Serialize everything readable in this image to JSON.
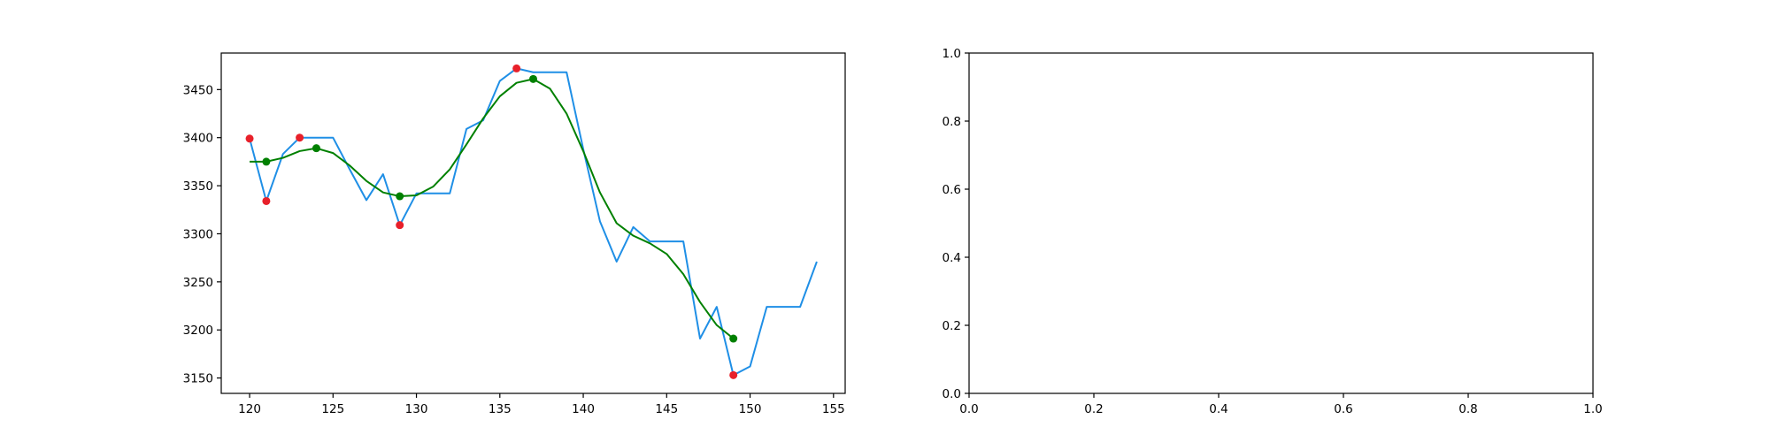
{
  "chart_data": [
    {
      "type": "line",
      "xlim": [
        118.3,
        155.7
      ],
      "ylim": [
        3134,
        3488
      ],
      "xticks": [
        120,
        125,
        130,
        135,
        140,
        145,
        150,
        155
      ],
      "yticks": [
        3150,
        3200,
        3250,
        3300,
        3350,
        3400,
        3450
      ],
      "xtick_labels": [
        "120",
        "125",
        "130",
        "135",
        "140",
        "145",
        "150",
        "155"
      ],
      "ytick_labels": [
        "3150",
        "3200",
        "3250",
        "3300",
        "3350",
        "3400",
        "3450"
      ],
      "grid": false,
      "series": [
        {
          "kind": "line",
          "color": "#1f8fe6",
          "x": [
            120,
            121,
            122,
            123,
            124,
            125,
            126,
            127,
            128,
            129,
            130,
            131,
            132,
            133,
            134,
            135,
            136,
            137,
            138,
            139,
            140,
            141,
            142,
            143,
            144,
            145,
            146,
            147,
            148,
            149,
            150,
            151,
            152,
            153,
            154
          ],
          "y": [
            3399,
            3334,
            3383,
            3400,
            3400,
            3400,
            3367,
            3335,
            3362,
            3309,
            3342,
            3342,
            3342,
            3409,
            3418,
            3459,
            3472,
            3468,
            3468,
            3468,
            3388,
            3313,
            3271,
            3307,
            3292,
            3292,
            3292,
            3191,
            3224,
            3153,
            3162,
            3224,
            3224,
            3224,
            3271
          ]
        },
        {
          "kind": "line",
          "color": "#008000",
          "x": [
            120,
            121,
            122,
            123,
            124,
            125,
            126,
            127,
            128,
            129,
            130,
            131,
            132,
            133,
            134,
            135,
            136,
            137,
            138,
            139,
            140,
            141,
            142,
            143,
            144,
            145,
            146,
            147,
            148,
            149
          ],
          "y": [
            3375,
            3375,
            3379,
            3386,
            3389,
            3384,
            3371,
            3355,
            3343,
            3339,
            3340,
            3349,
            3367,
            3393,
            3420,
            3443,
            3457,
            3461,
            3451,
            3425,
            3386,
            3343,
            3311,
            3298,
            3290,
            3279,
            3258,
            3229,
            3205,
            3191
          ]
        },
        {
          "kind": "scatter",
          "color": "#e8202a",
          "x": [
            120,
            121,
            123,
            129,
            136,
            149
          ],
          "y": [
            3399,
            3334,
            3400,
            3309,
            3472,
            3153
          ]
        },
        {
          "kind": "scatter",
          "color": "#008000",
          "x": [
            121,
            124,
            129,
            137,
            149
          ],
          "y": [
            3375,
            3389,
            3339,
            3461,
            3191
          ]
        }
      ]
    },
    {
      "type": "line",
      "xlim": [
        0.0,
        1.0
      ],
      "ylim": [
        0.0,
        1.0
      ],
      "xticks": [
        0.0,
        0.2,
        0.4,
        0.6,
        0.8,
        1.0
      ],
      "yticks": [
        0.0,
        0.2,
        0.4,
        0.6,
        0.8,
        1.0
      ],
      "xtick_labels": [
        "0.0",
        "0.2",
        "0.4",
        "0.6",
        "0.8",
        "1.0"
      ],
      "ytick_labels": [
        "0.0",
        "0.2",
        "0.4",
        "0.6",
        "0.8",
        "1.0"
      ],
      "grid": false,
      "series": []
    }
  ]
}
